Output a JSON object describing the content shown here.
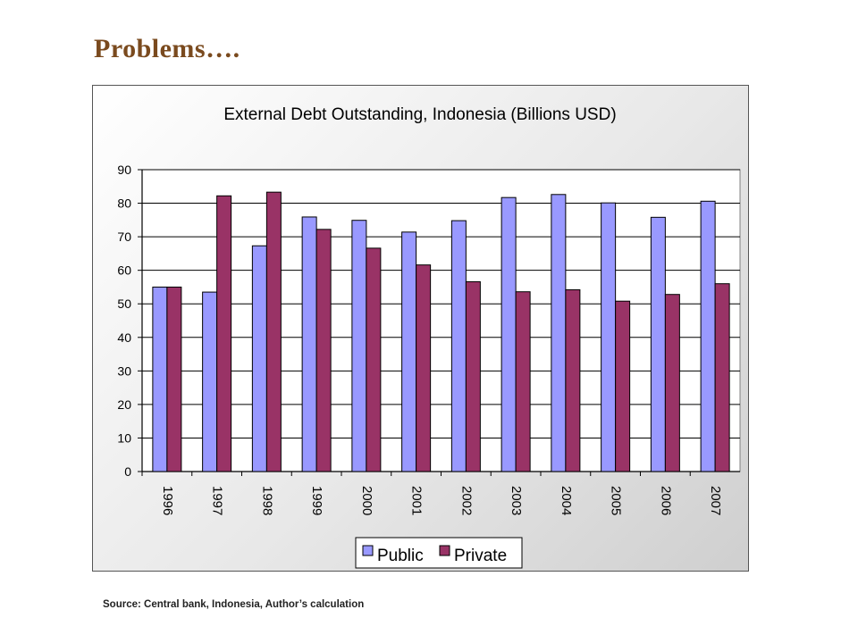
{
  "slide": {
    "title": "Problems….",
    "source": "Source: Central bank, Indonesia, Author’s calculation"
  },
  "chart_data": {
    "type": "bar",
    "title": "External Debt Outstanding, Indonesia (Billions USD)",
    "categories": [
      "1996",
      "1997",
      "1998",
      "1999",
      "2000",
      "2001",
      "2002",
      "2003",
      "2004",
      "2005",
      "2006",
      "2007"
    ],
    "series": [
      {
        "name": "Public",
        "color": "#9999ff",
        "values": [
          55,
          53.5,
          67.3,
          75.9,
          74.9,
          71.4,
          74.8,
          81.7,
          82.6,
          80.1,
          75.8,
          80.6
        ]
      },
      {
        "name": "Private",
        "color": "#993366",
        "values": [
          55,
          82.2,
          83.3,
          72.2,
          66.6,
          61.6,
          56.6,
          53.6,
          54.2,
          50.8,
          52.8,
          56.0
        ]
      }
    ],
    "yticks": [
      0,
      10,
      20,
      30,
      40,
      50,
      60,
      70,
      80,
      90
    ],
    "ylim": [
      0,
      90
    ],
    "grid": true,
    "legend_position": "bottom-center"
  }
}
